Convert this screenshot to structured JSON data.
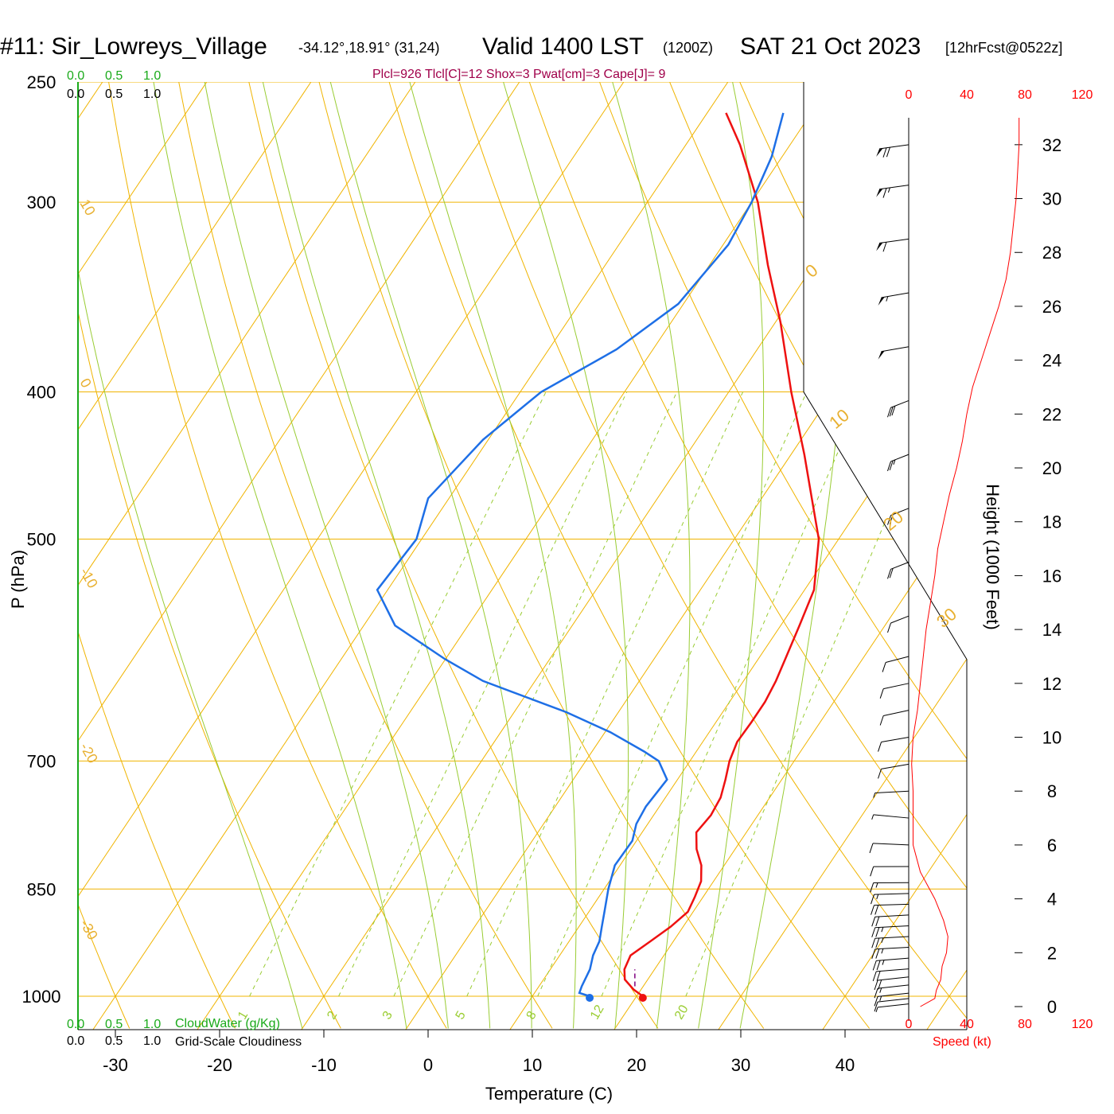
{
  "chart_data": {
    "type": "skew-t",
    "title": "#11: Sir_Lowreys_Village",
    "location_coords": "-34.12°,18.91° (31,24)",
    "valid_time": "Valid 1400 LST",
    "utc_time": "(1200Z)",
    "date": "SAT 21 Oct 2023",
    "forecast_info": "[12hrFcst@0522z]",
    "indices_line": "Plcl=926 Tlcl[C]=12 Shox=3 Pwat[cm]=3 Cape[J]= 9",
    "xlabel": "Temperature (C)",
    "ylabel": "P (hPa)",
    "height_axis_label": "Height (1000 Feet)",
    "speed_axis_label": "Speed (kt)",
    "cloudwater_label": "CloudWater (g/Kg)",
    "cloudiness_label": "Grid-Scale Cloudiness",
    "x_ticks": [
      -30,
      -20,
      -10,
      0,
      10,
      20,
      30,
      40
    ],
    "pressure_ticks": [
      250,
      300,
      400,
      500,
      700,
      850,
      1000
    ],
    "height_ticks": [
      0,
      2,
      4,
      6,
      8,
      10,
      12,
      14,
      16,
      18,
      20,
      22,
      24,
      26,
      28,
      30,
      32
    ],
    "speed_ticks": [
      "0",
      "40",
      "80",
      "120"
    ],
    "scale_ticks": [
      "0.0",
      "0.5",
      "1.0"
    ],
    "isotherm_labels": [
      "10",
      "0",
      "-10",
      "-20",
      "-30"
    ],
    "isotherm_labels_right": [
      "0",
      "10",
      "20",
      "30"
    ],
    "mixing_ratio_labels": [
      "1",
      "2",
      "3",
      "5",
      "8",
      "12",
      "20"
    ],
    "temperature_profile": {
      "name": "Temperature",
      "color": "#ee1111",
      "points": [
        [
          1000,
          20.6
        ],
        [
          990,
          19.3
        ],
        [
          975,
          17.8
        ],
        [
          960,
          17.1
        ],
        [
          940,
          16.8
        ],
        [
          920,
          17.8
        ],
        [
          900,
          18.8
        ],
        [
          880,
          19.5
        ],
        [
          860,
          19.2
        ],
        [
          840,
          18.8
        ],
        [
          820,
          17.8
        ],
        [
          800,
          16.3
        ],
        [
          780,
          15.2
        ],
        [
          760,
          15.5
        ],
        [
          740,
          15.3
        ],
        [
          720,
          14.6
        ],
        [
          700,
          13.8
        ],
        [
          680,
          13.3
        ],
        [
          660,
          13.4
        ],
        [
          640,
          13.4
        ],
        [
          620,
          13.1
        ],
        [
          600,
          12.6
        ],
        [
          570,
          11.8
        ],
        [
          540,
          10.9
        ],
        [
          500,
          8.1
        ],
        [
          470,
          4.8
        ],
        [
          440,
          1.3
        ],
        [
          400,
          -4.0
        ],
        [
          360,
          -9.5
        ],
        [
          330,
          -14.4
        ],
        [
          300,
          -19.4
        ],
        [
          275,
          -24.8
        ],
        [
          262,
          -28.2
        ]
      ]
    },
    "dewpoint_profile": {
      "name": "Dewpoint",
      "color": "#1e6fe6",
      "points": [
        [
          1000,
          15.5
        ],
        [
          995,
          14.3
        ],
        [
          985,
          14.1
        ],
        [
          960,
          13.8
        ],
        [
          940,
          13.2
        ],
        [
          920,
          12.9
        ],
        [
          900,
          12.2
        ],
        [
          880,
          11.5
        ],
        [
          850,
          10.4
        ],
        [
          820,
          9.5
        ],
        [
          790,
          9.6
        ],
        [
          770,
          8.9
        ],
        [
          750,
          8.7
        ],
        [
          720,
          9.0
        ],
        [
          700,
          7.0
        ],
        [
          690,
          5.0
        ],
        [
          670,
          0.5
        ],
        [
          650,
          -5.0
        ],
        [
          620,
          -15.0
        ],
        [
          600,
          -20.0
        ],
        [
          570,
          -27.0
        ],
        [
          540,
          -31.0
        ],
        [
          500,
          -30.5
        ],
        [
          470,
          -32.0
        ],
        [
          430,
          -30.5
        ],
        [
          400,
          -28.0
        ],
        [
          375,
          -23.5
        ],
        [
          350,
          -20.5
        ],
        [
          320,
          -19.5
        ],
        [
          300,
          -20.0
        ],
        [
          280,
          -21.0
        ],
        [
          262,
          -22.7
        ]
      ]
    },
    "surface_temperature_C": 20.6,
    "surface_dewpoint_C": 15.5,
    "parcel_trace_points": [
      [
        985,
        19.2
      ],
      [
        960,
        18.1
      ]
    ],
    "wind_speed_profile": [
      [
        0.0,
        8
      ],
      [
        0.3,
        18
      ],
      [
        0.6,
        19
      ],
      [
        1.0,
        22
      ],
      [
        1.5,
        23
      ],
      [
        2.0,
        26
      ],
      [
        2.6,
        27
      ],
      [
        3.2,
        24
      ],
      [
        4.0,
        18
      ],
      [
        5.0,
        8
      ],
      [
        6.0,
        3
      ],
      [
        7.0,
        3
      ],
      [
        8.0,
        3
      ],
      [
        9.0,
        2
      ],
      [
        10.0,
        3
      ],
      [
        11.0,
        6
      ],
      [
        12.0,
        8
      ],
      [
        13.0,
        10
      ],
      [
        14.0,
        12
      ],
      [
        15.0,
        15
      ],
      [
        16.0,
        18
      ],
      [
        17.0,
        20
      ],
      [
        18.0,
        24
      ],
      [
        19.0,
        28
      ],
      [
        20.0,
        33
      ],
      [
        21.0,
        37
      ],
      [
        22.0,
        40
      ],
      [
        23.0,
        44
      ],
      [
        24.0,
        50
      ],
      [
        25.0,
        56
      ],
      [
        26.0,
        62
      ],
      [
        27.0,
        67
      ],
      [
        28.0,
        70
      ],
      [
        29.0,
        72
      ],
      [
        30.0,
        74
      ],
      [
        31.0,
        75
      ],
      [
        32.0,
        76
      ],
      [
        33.0,
        76
      ]
    ],
    "wind_barbs": [
      {
        "height": 0.1,
        "speed": 8,
        "dir": 300
      },
      {
        "height": 0.3,
        "speed": 10,
        "dir": 300
      },
      {
        "height": 0.5,
        "speed": 15,
        "dir": 300
      },
      {
        "height": 0.8,
        "speed": 18,
        "dir": 300
      },
      {
        "height": 1.1,
        "speed": 20,
        "dir": 300
      },
      {
        "height": 1.4,
        "speed": 22,
        "dir": 295
      },
      {
        "height": 1.8,
        "speed": 25,
        "dir": 295
      },
      {
        "height": 2.2,
        "speed": 26,
        "dir": 290
      },
      {
        "height": 2.6,
        "speed": 27,
        "dir": 290
      },
      {
        "height": 3.0,
        "speed": 25,
        "dir": 290
      },
      {
        "height": 3.4,
        "speed": 24,
        "dir": 290
      },
      {
        "height": 3.8,
        "speed": 20,
        "dir": 285
      },
      {
        "height": 4.2,
        "speed": 18,
        "dir": 285
      },
      {
        "height": 4.6,
        "speed": 15,
        "dir": 280
      },
      {
        "height": 5.2,
        "speed": 12,
        "dir": 280
      },
      {
        "height": 6.0,
        "speed": 10,
        "dir": 270
      },
      {
        "height": 7.0,
        "speed": 5,
        "dir": 260
      },
      {
        "height": 8.0,
        "speed": 5,
        "dir": 290
      },
      {
        "height": 9.0,
        "speed": 10,
        "dir": 310
      },
      {
        "height": 10.0,
        "speed": 10,
        "dir": 310
      },
      {
        "height": 11.0,
        "speed": 10,
        "dir": 315
      },
      {
        "height": 12.0,
        "speed": 10,
        "dir": 315
      },
      {
        "height": 13.0,
        "speed": 10,
        "dir": 320
      },
      {
        "height": 14.5,
        "speed": 10,
        "dir": 330
      },
      {
        "height": 16.5,
        "speed": 20,
        "dir": 330
      },
      {
        "height": 18.5,
        "speed": 20,
        "dir": 330
      },
      {
        "height": 20.5,
        "speed": 25,
        "dir": 330
      },
      {
        "height": 22.5,
        "speed": 30,
        "dir": 330
      },
      {
        "height": 24.5,
        "speed": 50,
        "dir": 310
      },
      {
        "height": 26.5,
        "speed": 55,
        "dir": 310
      },
      {
        "height": 28.5,
        "speed": 60,
        "dir": 305
      },
      {
        "height": 30.5,
        "speed": 65,
        "dir": 305
      },
      {
        "height": 32.0,
        "speed": 70,
        "dir": 305
      }
    ],
    "x_range_C": [
      -34,
      46
    ],
    "pressure_range_hPa": [
      1000,
      250
    ],
    "height_range_kft": [
      0,
      33
    ],
    "grid": true,
    "colors": {
      "isotherm": "#f0b400",
      "isobar": "#f0b400",
      "dry_adiabat": "#f0b400",
      "moist_adiabat": "#99cc33",
      "mixing_ratio": "#99cc33",
      "cloud_scale": "#1aaa1a",
      "speed": "#ff0000",
      "indices": "#a0004a"
    }
  }
}
